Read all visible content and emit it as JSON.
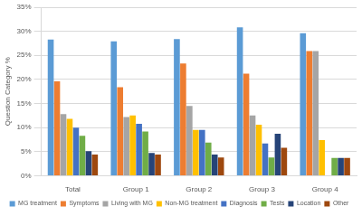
{
  "chart_data": {
    "type": "bar",
    "y_label": "Question Category %",
    "categories": [
      "Total",
      "Group 1",
      "Group 2",
      "Group 3",
      "Group 4"
    ],
    "series": [
      {
        "name": "MG treatment",
        "color": "#5B9BD5",
        "values": [
          28.3,
          27.9,
          28.4,
          30.8,
          29.6
        ]
      },
      {
        "name": "Symptoms",
        "color": "#ED7D31",
        "values": [
          19.6,
          18.4,
          23.3,
          21.2,
          25.9
        ]
      },
      {
        "name": "Living with MG",
        "color": "#A5A5A5",
        "values": [
          12.8,
          12.2,
          14.5,
          12.5,
          25.9
        ]
      },
      {
        "name": "Non-MG treatment",
        "color": "#FFC000",
        "values": [
          11.8,
          12.5,
          9.5,
          10.6,
          7.4
        ]
      },
      {
        "name": "Diagnosis",
        "color": "#4472C4",
        "values": [
          10.0,
          10.8,
          9.5,
          6.7,
          0
        ]
      },
      {
        "name": "Tests",
        "color": "#70AD47",
        "values": [
          8.3,
          9.2,
          6.9,
          3.8,
          3.7
        ]
      },
      {
        "name": "Location",
        "color": "#264478",
        "values": [
          5.1,
          4.7,
          4.4,
          8.7,
          3.7
        ]
      },
      {
        "name": "Other",
        "color": "#9E480E",
        "values": [
          4.4,
          4.4,
          3.8,
          5.8,
          3.7
        ]
      }
    ],
    "ylim": [
      0,
      35
    ],
    "yticks": [
      {
        "value": 0,
        "label": "0%"
      },
      {
        "value": 5,
        "label": "5%"
      },
      {
        "value": 10,
        "label": "10%"
      },
      {
        "value": 15,
        "label": "15%"
      },
      {
        "value": 20,
        "label": "20%"
      },
      {
        "value": 25,
        "label": "25%"
      },
      {
        "value": 30,
        "label": "30%"
      },
      {
        "value": 35,
        "label": "35%"
      }
    ],
    "grid": true,
    "legend": "bottom"
  }
}
